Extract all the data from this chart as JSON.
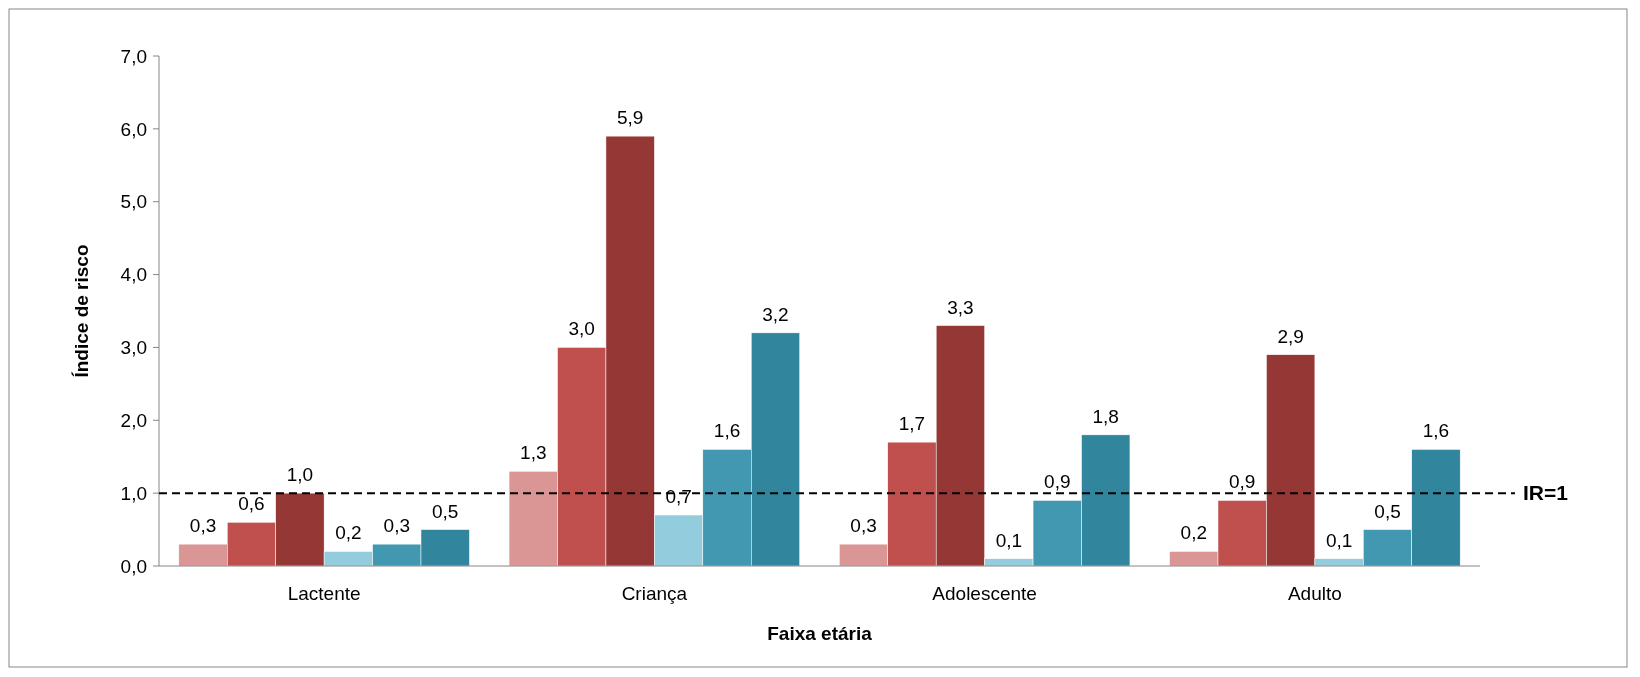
{
  "chart_data": {
    "type": "bar",
    "xlabel": "Faixa etária",
    "ylabel": "Índice de risco",
    "categories": [
      "Lactente",
      "Criança",
      "Adolescente",
      "Adulto"
    ],
    "series": [
      {
        "color": "#d99694",
        "values": [
          0.3,
          1.3,
          0.3,
          0.2
        ],
        "value_labels": [
          "0,3",
          "1,3",
          "0,3",
          "0,2"
        ]
      },
      {
        "color": "#c0504d",
        "values": [
          0.6,
          3.0,
          1.7,
          0.9
        ],
        "value_labels": [
          "0,6",
          "3,0",
          "1,7",
          "0,9"
        ]
      },
      {
        "color": "#953735",
        "values": [
          1.0,
          5.9,
          3.3,
          2.9
        ],
        "value_labels": [
          "1,0",
          "5,9",
          "3,3",
          "2,9"
        ]
      },
      {
        "color": "#93cddd",
        "values": [
          0.2,
          0.7,
          0.1,
          0.1
        ],
        "value_labels": [
          "0,2",
          "0,7",
          "0,1",
          "0,1"
        ]
      },
      {
        "color": "#4198b0",
        "values": [
          0.3,
          1.6,
          0.9,
          0.5
        ],
        "value_labels": [
          "0,3",
          "1,6",
          "0,9",
          "0,5"
        ]
      },
      {
        "color": "#31859c",
        "values": [
          0.5,
          3.2,
          1.8,
          1.6
        ],
        "value_labels": [
          "0,5",
          "3,2",
          "1,8",
          "1,6"
        ]
      }
    ],
    "ylim": [
      0,
      7
    ],
    "yticks": [
      {
        "value": 0,
        "label": "0,0"
      },
      {
        "value": 1,
        "label": "1,0"
      },
      {
        "value": 2,
        "label": "2,0"
      },
      {
        "value": 3,
        "label": "3,0"
      },
      {
        "value": 4,
        "label": "4,0"
      },
      {
        "value": 5,
        "label": "5,0"
      },
      {
        "value": 6,
        "label": "6,0"
      },
      {
        "value": 7,
        "label": "7,0"
      }
    ],
    "ref_lines": [
      {
        "axis": "y",
        "value": 1,
        "label": "IR=1",
        "color": "#000000",
        "line_style": "dashed"
      }
    ],
    "grid": false
  }
}
